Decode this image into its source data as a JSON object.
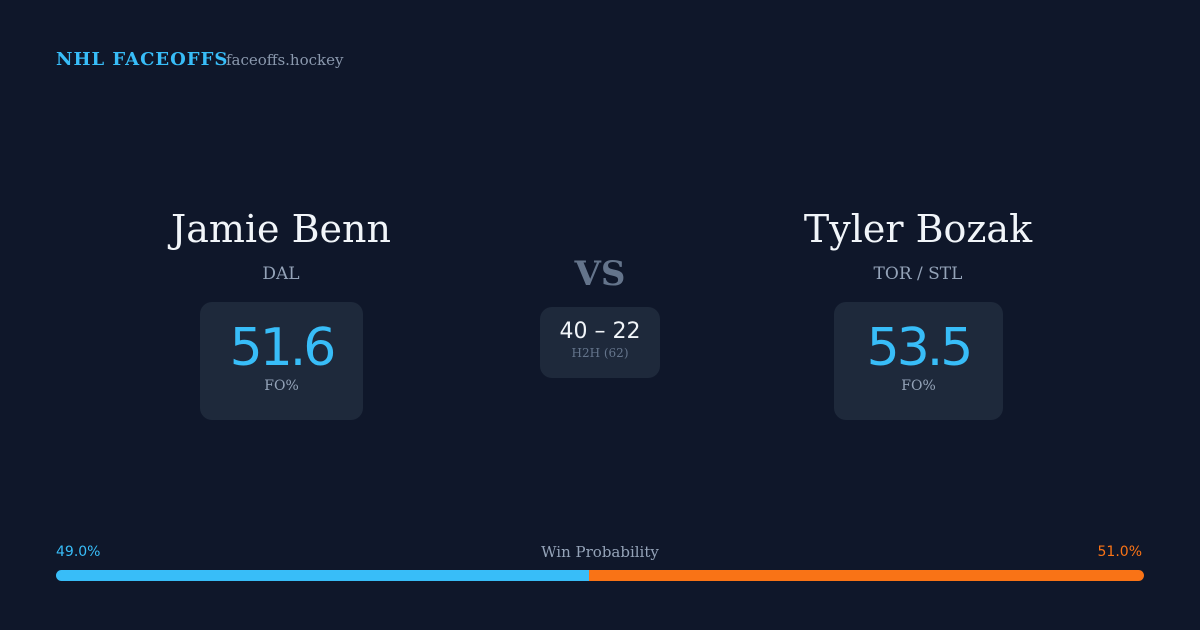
{
  "header": {
    "title": "NHL FACEOFFS",
    "site": "faceoffs.hockey"
  },
  "players": [
    {
      "name": "Jamie Benn",
      "team": "DAL",
      "fo_pct": 51.6,
      "fo_label": "FO%"
    },
    {
      "name": "Tyler Bozak",
      "team": "TOR / STL",
      "fo_pct": 53.5,
      "fo_label": "FO%"
    }
  ],
  "versus": {
    "label": "VS",
    "record": "40 – 22",
    "note": "H2H (62)"
  },
  "win_probability": {
    "title": "Win Probability",
    "left": {
      "value": 49.0,
      "label": "49.0%",
      "color": "#38bdf8"
    },
    "right": {
      "value": 51.0,
      "label": "51.0%",
      "color": "#f97316"
    }
  }
}
